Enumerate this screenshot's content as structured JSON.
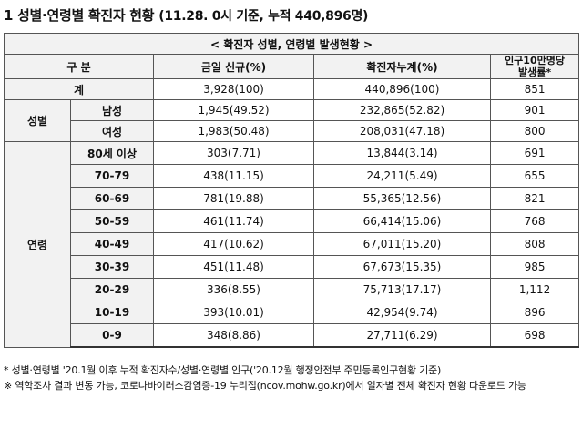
{
  "title": {
    "main": "1  성별·연령별 확진자 현황",
    "sub": "(11.28. 0시 기준, 누적 440,896명)"
  },
  "table": {
    "caption": "< 확진자 성별, 연령별 발생현황 >",
    "headers": {
      "category": "구 분",
      "new_cases": "금일 신규(%)",
      "cumulative": "확진자누계(%)",
      "rate_line1": "인구10만명당",
      "rate_line2": "발생률*"
    },
    "total": {
      "label": "계",
      "new": "3,928(100)",
      "cum": "440,896(100)",
      "rate": "851"
    },
    "gender_label": "성별",
    "gender": [
      {
        "label": "남성",
        "new": "1,945(49.52)",
        "cum": "232,865(52.82)",
        "rate": "901"
      },
      {
        "label": "여성",
        "new": "1,983(50.48)",
        "cum": "208,031(47.18)",
        "rate": "800"
      }
    ],
    "age_label": "연령",
    "age": [
      {
        "label": "80세 이상",
        "new": "303(7.71)",
        "cum": "13,844(3.14)",
        "rate": "691"
      },
      {
        "label": "70-79",
        "new": "438(11.15)",
        "cum": "24,211(5.49)",
        "rate": "655"
      },
      {
        "label": "60-69",
        "new": "781(19.88)",
        "cum": "55,365(12.56)",
        "rate": "821"
      },
      {
        "label": "50-59",
        "new": "461(11.74)",
        "cum": "66,414(15.06)",
        "rate": "768"
      },
      {
        "label": "40-49",
        "new": "417(10.62)",
        "cum": "67,011(15.20)",
        "rate": "808"
      },
      {
        "label": "30-39",
        "new": "451(11.48)",
        "cum": "67,673(15.35)",
        "rate": "985"
      },
      {
        "label": "20-29",
        "new": "336(8.55)",
        "cum": "75,713(17.17)",
        "rate": "1,112"
      },
      {
        "label": "10-19",
        "new": "393(10.01)",
        "cum": "42,954(9.74)",
        "rate": "896"
      },
      {
        "label": "0-9",
        "new": "348(8.86)",
        "cum": "27,711(6.29)",
        "rate": "698"
      }
    ]
  },
  "notes": {
    "note1": "* 성별·연령별 '20.1월 이후 누적 확진자수/성별·연령별 인구('20.12월 행정안전부 주민등록인구현황 기준)",
    "note2": "※ 역학조사 결과 변동 가능, 코로나바이러스감염증-19 누리집(ncov.mohw.go.kr)에서 일자별 전체 확진자 현황 다운로드 가능"
  }
}
